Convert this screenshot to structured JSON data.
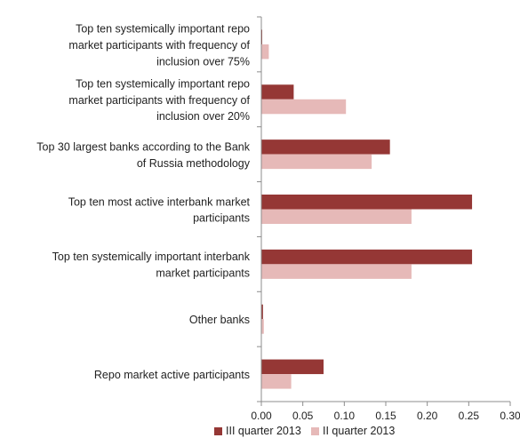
{
  "chart_data": {
    "type": "bar",
    "orientation": "horizontal",
    "categories": [
      "Top ten systemically important repo market participants with frequency of inclusion over 75%",
      "Top ten systemically important repo market participants with frequency of inclusion over 20%",
      "Top 30 largest banks according to the Bank of Russia methodology",
      "Top ten most active interbank market participants",
      "Top ten systemically important interbank market participants",
      "Other banks",
      "Repo market active participants"
    ],
    "category_lines": [
      [
        "Top ten systemically important repo",
        "market participants with frequency of",
        "inclusion over 75%"
      ],
      [
        "Top ten systemically important repo",
        "market participants with frequency of",
        "inclusion over 20%"
      ],
      [
        "Top 30 largest banks according to the Bank",
        "of Russia methodology"
      ],
      [
        "Top ten most active interbank market",
        "participants"
      ],
      [
        "Top ten systemically important interbank",
        "market participants"
      ],
      [
        "Other banks"
      ],
      [
        "Repo market active participants"
      ]
    ],
    "series": [
      {
        "name": "III quarter 2013",
        "color": "#953735",
        "values": [
          0.001,
          0.039,
          0.155,
          0.254,
          0.254,
          0.002,
          0.075
        ]
      },
      {
        "name": "II quarter 2013",
        "color": "#e6b9b8",
        "values": [
          0.009,
          0.102,
          0.133,
          0.181,
          0.181,
          0.003,
          0.036
        ]
      }
    ],
    "xlim": [
      0,
      0.3
    ],
    "xticks": [
      "0.00",
      "0.05",
      "0.10",
      "0.15",
      "0.20",
      "0.25",
      "0.30"
    ],
    "grid": false,
    "legend": "bottom"
  }
}
